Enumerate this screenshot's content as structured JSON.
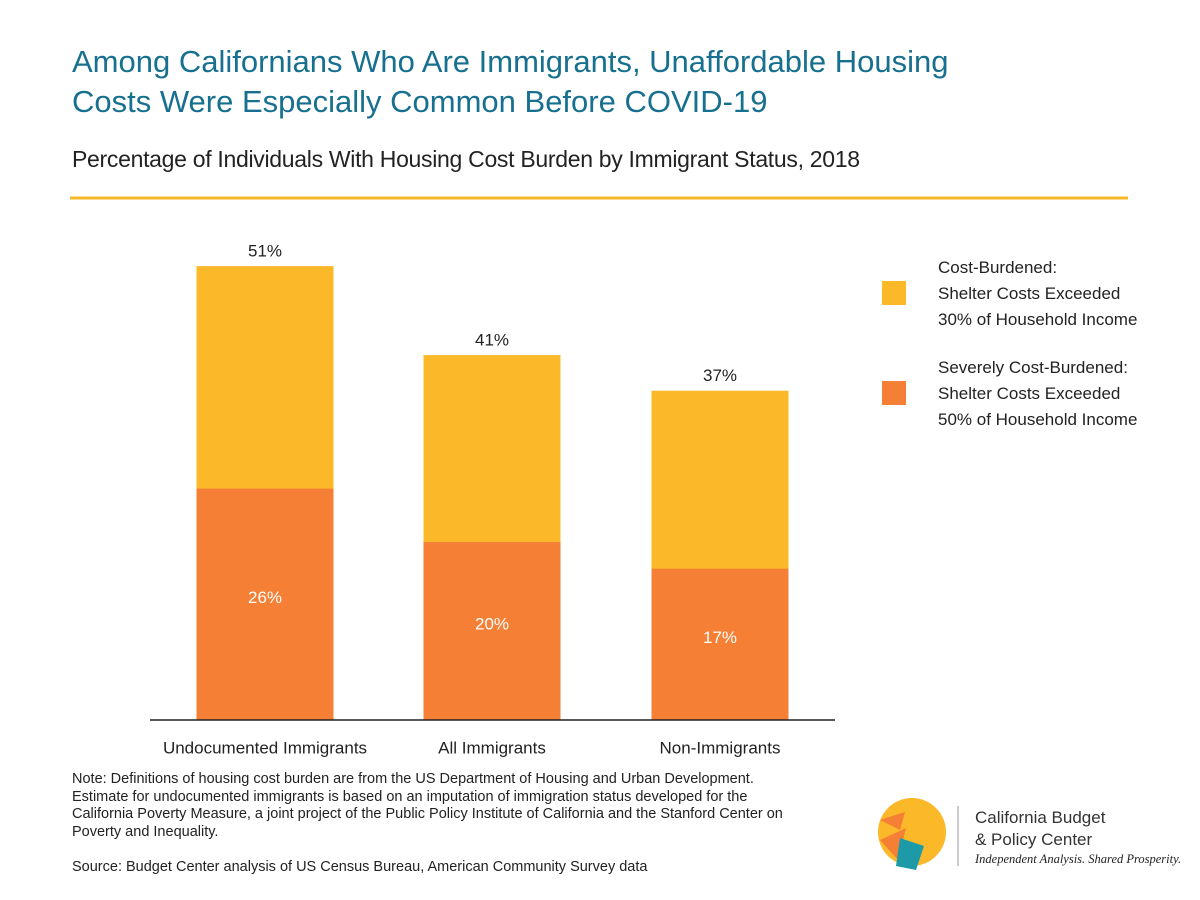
{
  "chart_data": {
    "type": "bar",
    "title": "Among Californians Who Are Immigrants, Unaffordable Housing\nCosts Were Especially Common Before COVID-19",
    "subtitle": "Percentage of Individuals With Housing Cost Burden by Immigrant Status, 2018",
    "categories": [
      "Undocumented Immigrants",
      "All Immigrants",
      "Non-Immigrants"
    ],
    "series": [
      {
        "name": "Cost-Burdened:\nShelter Costs Exceeded\n30% of Household Income",
        "color": "#fbb829",
        "values": [
          51,
          41,
          37
        ],
        "value_labels": [
          "51%",
          "41%",
          "37%"
        ]
      },
      {
        "name": "Severely Cost-Burdened:\nShelter Costs Exceeded\n50% of Household Income",
        "color": "#f47f35",
        "values": [
          26,
          20,
          17
        ],
        "value_labels": [
          "26%",
          "20%",
          "17%"
        ]
      }
    ],
    "note": "Note: Definitions of housing cost burden are from the US Department of Housing and Urban Development. Estimate for undocumented immigrants is based on an imputation of immigration status developed for the California Poverty Measure, a joint project of the Public Policy Institute of California and the Stanford Center on Poverty and Inequality.",
    "source": "Source: Budget Center analysis of US Census Bureau, American Community Survey data"
  },
  "logo": {
    "line1": "California Budget",
    "line2": "& Policy Center",
    "tagline": "Independent Analysis. Shared Prosperity."
  }
}
